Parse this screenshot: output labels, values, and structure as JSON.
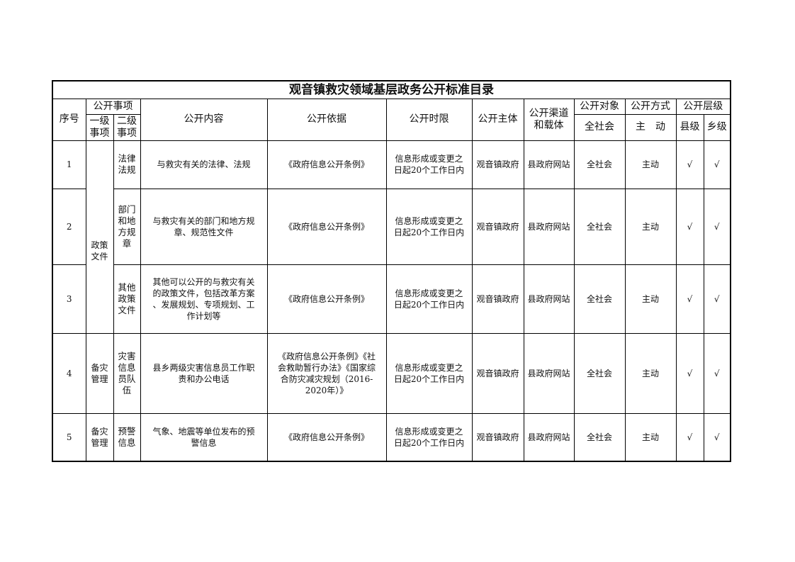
{
  "title": "观音镇救灾领域基层政务公开标准目录",
  "headers": {
    "seq": "序号",
    "items_group": "公开事项",
    "level1": "一级\n事项",
    "level2": "二级\n事项",
    "content": "公开内容",
    "basis": "公开依据",
    "time_limit": "公开时限",
    "subject": "公开主体",
    "channel": "公开渠道\n和载体",
    "target_group": "公开对象",
    "target_all": "全社会",
    "method_group": "公开方式",
    "method_active": "主　动",
    "level_group": "公开层级",
    "county": "县级",
    "township": "乡级"
  },
  "groups": {
    "policy": "政策\n文件",
    "prep4": "备灾\n管理",
    "prep5": "备灾\n管理"
  },
  "rows": [
    {
      "seq": "1",
      "level2": "法律法规",
      "content": "与救灾有关的法律、法规",
      "basis": "《政府信息公开条例》",
      "time": "信息形成或变更之\n日起20个工作日内",
      "subject": "观音镇政府",
      "channel": "县政府网站",
      "target": "全社会",
      "method": "主动",
      "county": "√",
      "township": "√"
    },
    {
      "seq": "2",
      "level2": "部门和地方规章",
      "content": "与救灾有关的部门和地方规\n章、规范性文件",
      "basis": "《政府信息公开条例》",
      "time": "信息形成或变更之\n日起20个工作日内",
      "subject": "观音镇政府",
      "channel": "县政府网站",
      "target": "全社会",
      "method": "主动",
      "county": "√",
      "township": "√"
    },
    {
      "seq": "3",
      "level2": "其他政策文件",
      "content": "其他可以公开的与救灾有关\n的政策文件，包括改革方案\n、发展规划、专项规划、工\n作计划等",
      "basis": "《政府信息公开条例》",
      "time": "信息形成或变更之\n日起20个工作日内",
      "subject": "观音镇政府",
      "channel": "县政府网站",
      "target": "全社会",
      "method": "主动",
      "county": "√",
      "township": "√"
    },
    {
      "seq": "4",
      "level2": "灾害信息员队伍",
      "content": "县乡两级灾害信息员工作职\n责和办公电话",
      "basis": "《政府信息公开条例》《社\n会救助暂行办法》《国家综\n合防灾减灾规划（2016-\n2020年）》",
      "time": "信息形成或变更之\n日起20个工作日内",
      "subject": "观音镇政府",
      "channel": "县政府网站",
      "target": "全社会",
      "method": "主动",
      "county": "√",
      "township": "√"
    },
    {
      "seq": "5",
      "level2": "预警信息",
      "content": "气象、地震等单位发布的预\n警信息",
      "basis": "《政府信息公开条例》",
      "time": "信息形成或变更之\n日起20个工作日内",
      "subject": "观音镇政府",
      "channel": "县政府网站",
      "target": "全社会",
      "method": "主动",
      "county": "√",
      "township": "√"
    }
  ]
}
